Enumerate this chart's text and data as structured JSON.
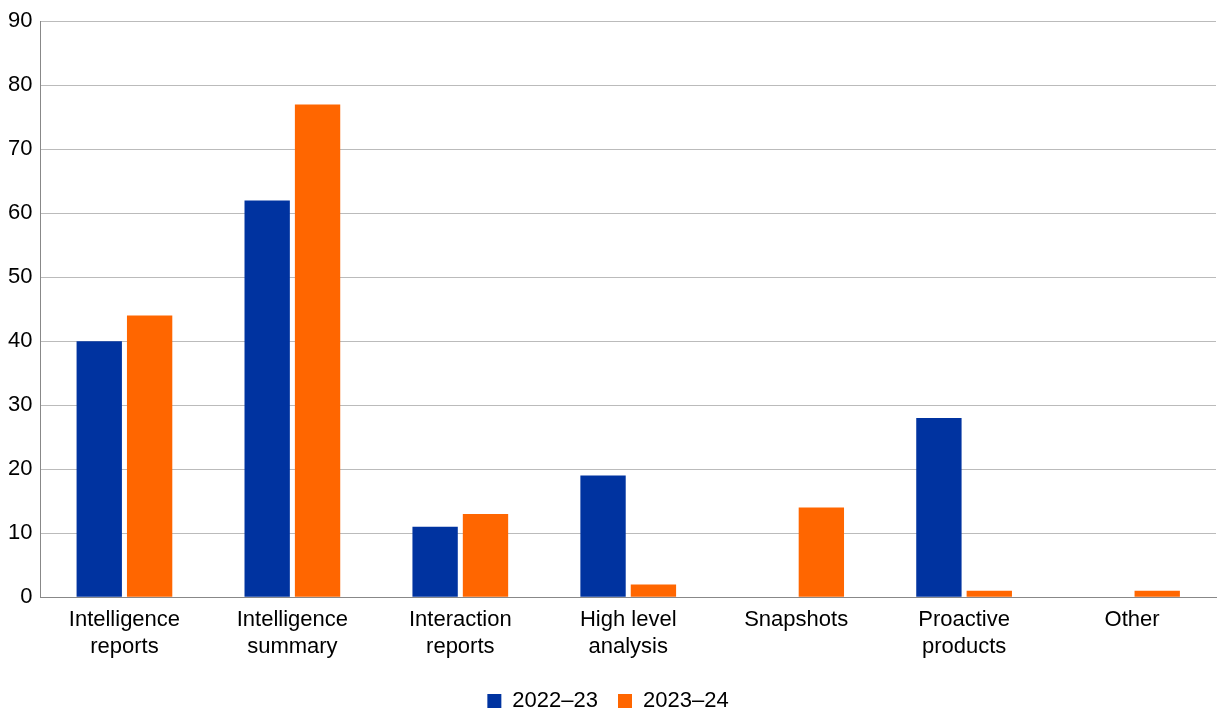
{
  "chart_data": {
    "type": "bar",
    "categories": [
      "Intelligence reports",
      "Intelligence summary",
      "Interaction reports",
      "High level analysis",
      "Snapshots",
      "Proactive products",
      "Other"
    ],
    "series": [
      {
        "name": "2022–23",
        "color": "#0033a0",
        "values": [
          40,
          62,
          11,
          19,
          0,
          28,
          0
        ]
      },
      {
        "name": "2023–24",
        "color": "#ff6600",
        "values": [
          44,
          77,
          13,
          2,
          14,
          1,
          1
        ]
      }
    ],
    "ylim": [
      0,
      90
    ],
    "yticks": [
      0,
      10,
      20,
      30,
      40,
      50,
      60,
      70,
      80,
      90
    ],
    "grid": "y",
    "legend": "bottom"
  }
}
